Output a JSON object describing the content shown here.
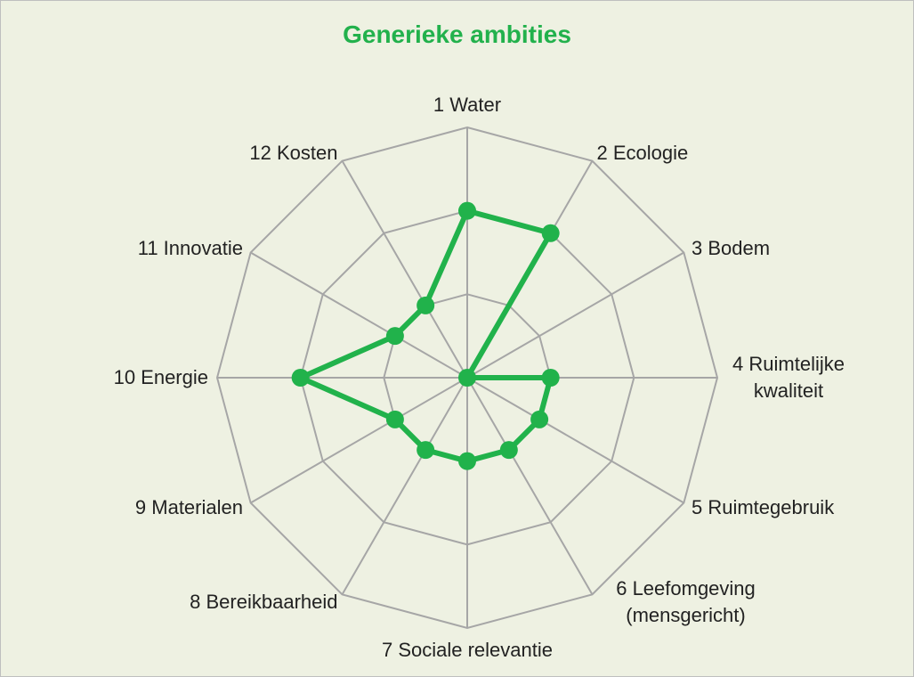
{
  "chart_data": {
    "type": "radar",
    "title": "Generieke ambities",
    "categories": [
      "1 Water",
      "2 Ecologie",
      "3 Bodem",
      "4 Ruimtelijke kwaliteit",
      "5 Ruimtegebruik",
      "6 Leefomgeving (mensgericht)",
      "7 Sociale relevantie",
      "8 Bereikbaarheid",
      "9 Materialen",
      "10 Energie",
      "11 Innovatie",
      "12 Kosten"
    ],
    "series": [
      {
        "color": "#21b24b",
        "values": [
          2,
          2,
          0,
          1,
          1,
          1,
          1,
          1,
          1,
          2,
          1,
          1
        ]
      }
    ],
    "rlim": [
      0,
      3
    ],
    "rticks": [
      1,
      2,
      3
    ],
    "grid": true
  }
}
